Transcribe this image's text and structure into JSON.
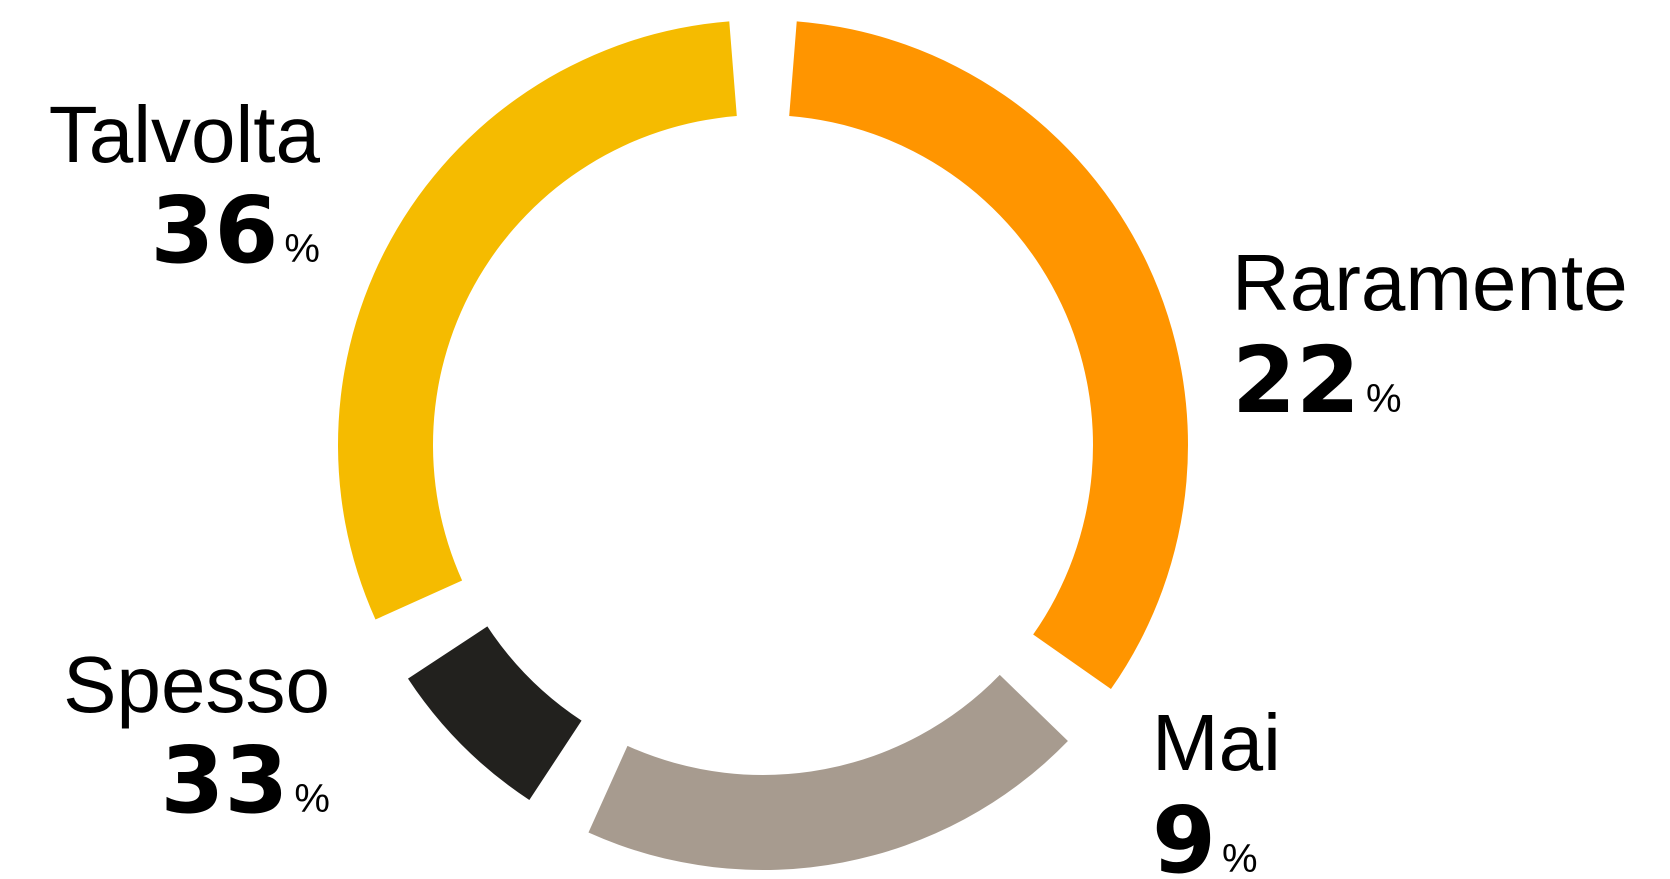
{
  "chart_data": {
    "type": "pie",
    "donut": true,
    "unit": "%",
    "slices": [
      {
        "label": "Talvolta",
        "value": 36,
        "color": "#FF9500"
      },
      {
        "label": "Raramente",
        "value": 22,
        "color": "#A79B8F"
      },
      {
        "label": "Mai",
        "value": 9,
        "color": "#22211E"
      },
      {
        "label": "Spesso",
        "value": 33,
        "color": "#F5BB00"
      }
    ]
  }
}
